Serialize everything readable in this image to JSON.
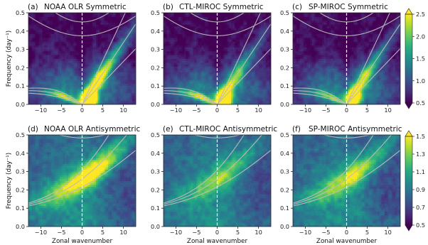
{
  "chart_data": [
    {
      "type": "heatmap",
      "label": "(a)",
      "title": "NOAA OLR Symmetric",
      "kind": "sym",
      "model": "noaa",
      "xlim": [
        -13,
        13
      ],
      "ylim": [
        0,
        0.5
      ],
      "xticks": [
        -10,
        -5,
        0,
        5,
        10
      ],
      "yticks": [
        0.0,
        0.1,
        0.2,
        0.3,
        0.4,
        0.5
      ],
      "ylabel": "Frequency (day⁻¹)",
      "xlabel": "",
      "clim": [
        0.5,
        2.5
      ]
    },
    {
      "type": "heatmap",
      "label": "(b)",
      "title": "CTL-MIROC Symmetric",
      "kind": "sym",
      "model": "ctl",
      "xlim": [
        -13,
        13
      ],
      "ylim": [
        0,
        0.5
      ],
      "xticks": [
        -10,
        -5,
        0,
        5,
        10
      ],
      "yticks": [
        0.0,
        0.1,
        0.2,
        0.3,
        0.4,
        0.5
      ],
      "ylabel": "",
      "xlabel": "",
      "clim": [
        0.5,
        2.5
      ]
    },
    {
      "type": "heatmap",
      "label": "(c)",
      "title": "SP-MIROC Symmetric",
      "kind": "sym",
      "model": "sp",
      "xlim": [
        -13,
        13
      ],
      "ylim": [
        0,
        0.5
      ],
      "xticks": [
        -10,
        -5,
        0,
        5,
        10
      ],
      "yticks": [
        0.0,
        0.1,
        0.2,
        0.3,
        0.4,
        0.5
      ],
      "ylabel": "",
      "xlabel": "",
      "clim": [
        0.5,
        2.5
      ]
    },
    {
      "type": "heatmap",
      "label": "(d)",
      "title": "NOAA OLR Antisymmetric",
      "kind": "anti",
      "model": "noaa",
      "xlim": [
        -13,
        13
      ],
      "ylim": [
        0,
        0.5
      ],
      "xticks": [
        -10,
        -5,
        0,
        5,
        10
      ],
      "yticks": [
        0.0,
        0.1,
        0.2,
        0.3,
        0.4,
        0.5
      ],
      "ylabel": "Frequency (day⁻¹)",
      "xlabel": "Zonal wavenumber",
      "clim": [
        0.5,
        1.5
      ]
    },
    {
      "type": "heatmap",
      "label": "(e)",
      "title": "CTL-MIROC Antisymmetric",
      "kind": "anti",
      "model": "ctl",
      "xlim": [
        -13,
        13
      ],
      "ylim": [
        0,
        0.5
      ],
      "xticks": [
        -10,
        -5,
        0,
        5,
        10
      ],
      "yticks": [
        0.0,
        0.1,
        0.2,
        0.3,
        0.4,
        0.5
      ],
      "ylabel": "",
      "xlabel": "Zonal wavenumber",
      "clim": [
        0.5,
        1.5
      ]
    },
    {
      "type": "heatmap",
      "label": "(f)",
      "title": "SP-MIROC Antisymmetric",
      "kind": "anti",
      "model": "sp",
      "xlim": [
        -13,
        13
      ],
      "ylim": [
        0,
        0.5
      ],
      "xticks": [
        -10,
        -5,
        0,
        5,
        10
      ],
      "yticks": [
        0.0,
        0.1,
        0.2,
        0.3,
        0.4,
        0.5
      ],
      "ylabel": "",
      "xlabel": "Zonal wavenumber",
      "clim": [
        0.5,
        1.5
      ]
    }
  ],
  "colorbars": [
    {
      "ticks": [
        0.5,
        1.0,
        1.5,
        2.0,
        2.5
      ],
      "tick_labels": [
        "0.5",
        "1.0",
        "1.5",
        "2.0",
        "2.5"
      ],
      "extend": "both"
    },
    {
      "ticks": [
        0.5,
        0.7,
        0.9,
        1.1,
        1.3,
        1.5
      ],
      "tick_labels": [
        "0.5",
        "0.7",
        "0.9",
        "1.1",
        "1.3",
        "1.5"
      ],
      "extend": "both"
    }
  ],
  "reference_lines": {
    "color": "#bcbcbc",
    "equivalent_depths_m": [
      12,
      25,
      50
    ],
    "zero_wavenumber_line": "white dashed"
  },
  "colors": {
    "cmap_low": "#440154",
    "cmap_mid": "#21918c",
    "cmap_high": "#fde725"
  }
}
